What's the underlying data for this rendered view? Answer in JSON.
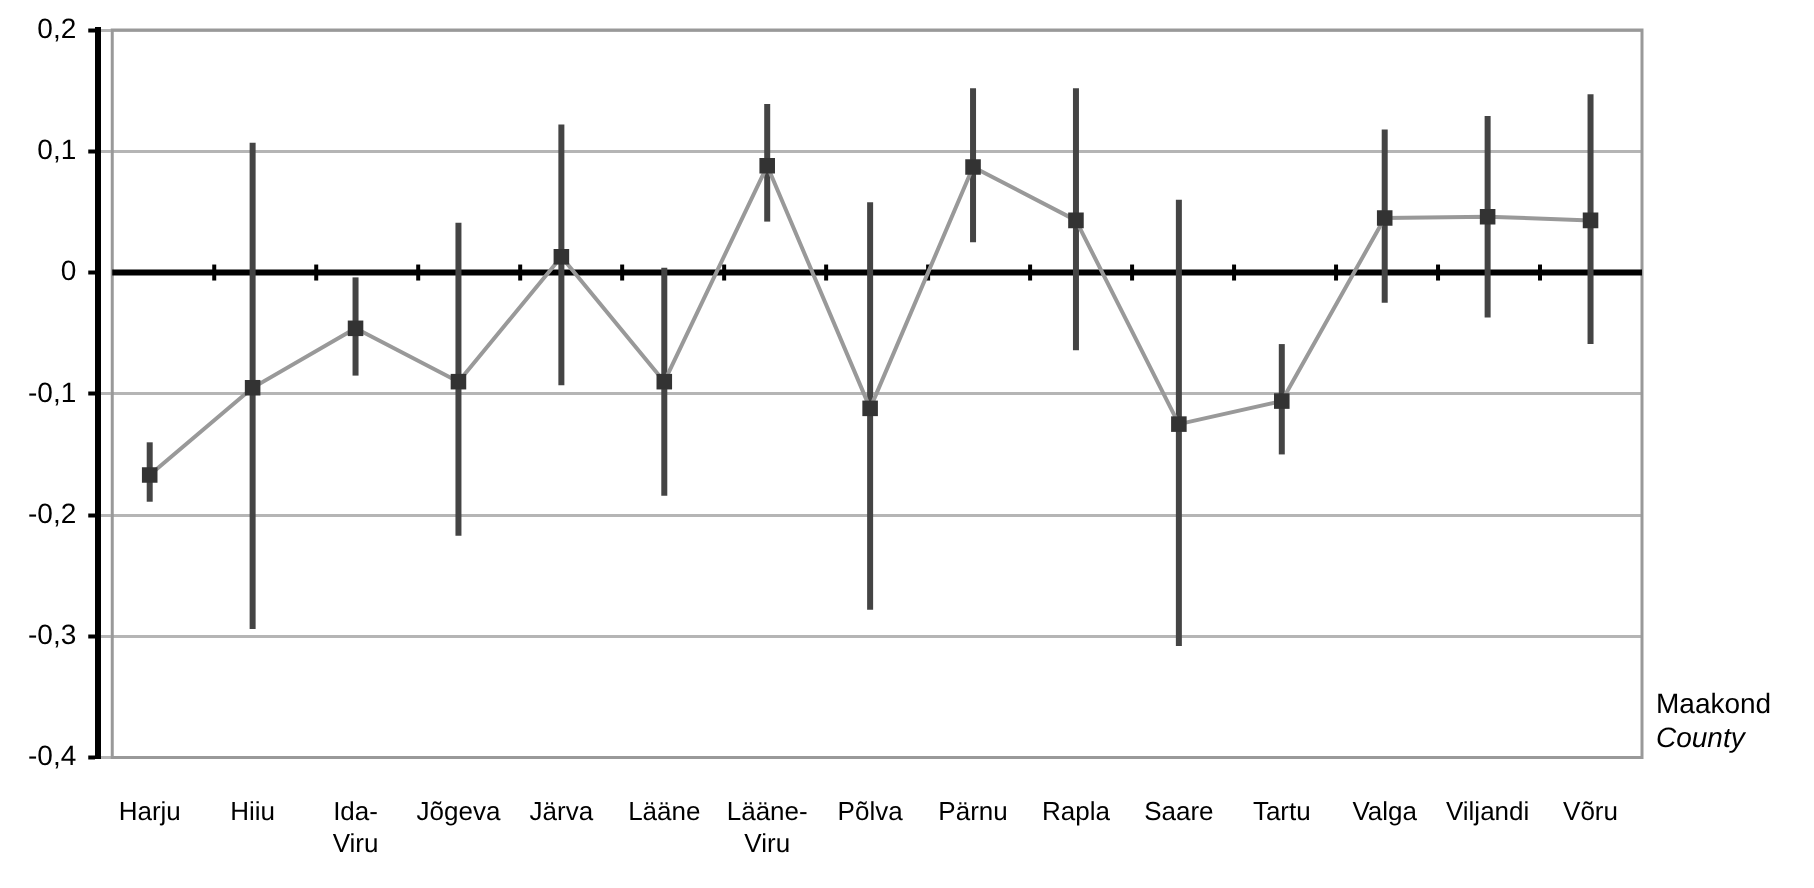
{
  "chart_data": {
    "type": "line",
    "xlabel": "Maakond\nCounty",
    "categories": [
      "Harju",
      "Hiiu",
      "Ida-Viru",
      "Jõgeva",
      "Järva",
      "Lääne",
      "Lääne-Viru",
      "Põlva",
      "Pärnu",
      "Rapla",
      "Saare",
      "Tartu",
      "Valga",
      "Viljandi",
      "Võru"
    ],
    "series": [
      {
        "color": "#999999",
        "values": [
          -0.167,
          -0.095,
          -0.046,
          -0.09,
          0.013,
          -0.09,
          0.088,
          -0.112,
          0.087,
          0.043,
          -0.125,
          -0.106,
          0.045,
          0.046,
          0.043
        ],
        "errors": [
          [
            -0.189,
            -0.14
          ],
          [
            -0.294,
            0.107
          ],
          [
            -0.085,
            -0.004
          ],
          [
            -0.217,
            0.041
          ],
          [
            -0.093,
            0.122
          ],
          [
            -0.184,
            0.004
          ],
          [
            0.042,
            0.139
          ],
          [
            -0.278,
            0.058
          ],
          [
            0.025,
            0.152
          ],
          [
            -0.064,
            0.152
          ],
          [
            -0.308,
            0.06
          ],
          [
            -0.15,
            -0.059
          ],
          [
            -0.025,
            0.118
          ],
          [
            -0.037,
            0.129
          ],
          [
            -0.059,
            0.147
          ]
        ]
      }
    ],
    "ylim": [
      -0.4,
      0.2
    ],
    "yticks": [
      {
        "value": -0.4,
        "label": "-0,4"
      },
      {
        "value": -0.3,
        "label": "-0,3"
      },
      {
        "value": -0.2,
        "label": "-0,2"
      },
      {
        "value": -0.1,
        "label": "-0,1"
      },
      {
        "value": 0,
        "label": "0"
      },
      {
        "value": 0.1,
        "label": "0,1"
      },
      {
        "value": 0.2,
        "label": "0,2"
      }
    ],
    "grid": "y",
    "legend": false,
    "marker": "square",
    "line_style": "solid"
  }
}
